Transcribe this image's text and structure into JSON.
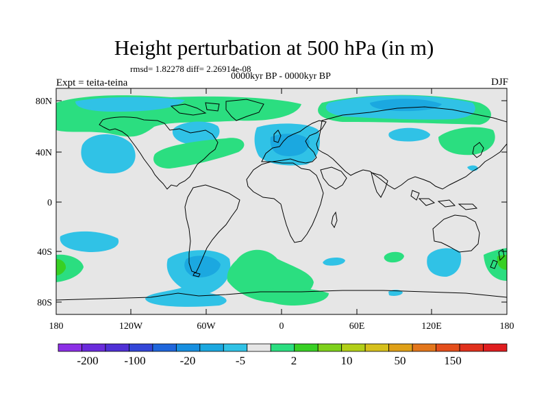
{
  "title": "Height perturbation at 500 hPa (in m)",
  "stats_text": "rmsd= 1.82278 diff= 2.26914e-08",
  "subtitle": "0000kyr BP - 0000kyr BP",
  "left_label": "Expt = teita-teina",
  "right_label": "DJF",
  "map": {
    "projection": "cylindrical-equidistant",
    "lat_range": [
      -90,
      90
    ],
    "lon_range": [
      -180,
      180
    ],
    "background_color": "#e6e6e6",
    "coastline_color": "#000000"
  },
  "axes": {
    "y_ticks": [
      "80N",
      "40N",
      "0",
      "40S",
      "80S"
    ],
    "x_ticks": [
      "180",
      "120W",
      "60W",
      "0",
      "60E",
      "120E",
      "180"
    ]
  },
  "colorbar": {
    "colors": [
      "#8c2fe6",
      "#6a2bdc",
      "#4f30d6",
      "#3346d8",
      "#1f66dc",
      "#178fe0",
      "#1ba8e0",
      "#30c2e6",
      "#e6e6e6",
      "#2bde80",
      "#38d024",
      "#7ed11b",
      "#b2cf18",
      "#d6c01c",
      "#dfa017",
      "#e3761b",
      "#e44e1b",
      "#e1301c",
      "#e01d1f"
    ],
    "labels": [
      "-200",
      "-100",
      "-20",
      "-5",
      "2",
      "10",
      "50",
      "150"
    ]
  }
}
